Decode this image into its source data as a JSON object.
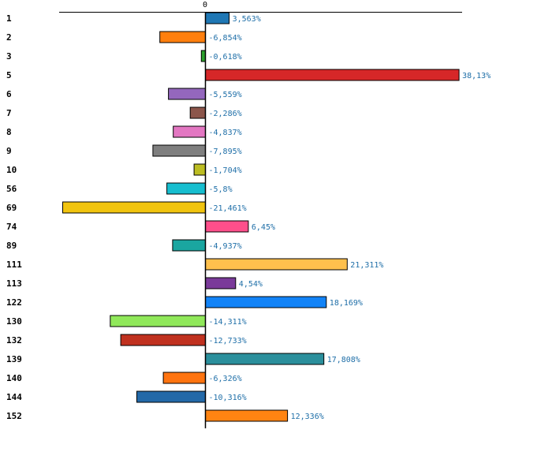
{
  "chart_data": {
    "type": "bar",
    "orientation": "horizontal",
    "title": "",
    "xlabel": "",
    "ylabel": "",
    "zero_tick_label": "0",
    "xlim": [
      -22.6,
      40.2
    ],
    "grid": false,
    "legend": "none",
    "bars": [
      {
        "category": "1",
        "value": 3.563,
        "label": "3,563%",
        "color": "#1f77b4"
      },
      {
        "category": "2",
        "value": -6.854,
        "label": "-6,854%",
        "color": "#ff7f0e"
      },
      {
        "category": "3",
        "value": -0.618,
        "label": "-0,618%",
        "color": "#2ca02c"
      },
      {
        "category": "5",
        "value": 38.13,
        "label": "38,13%",
        "color": "#d62728"
      },
      {
        "category": "6",
        "value": -5.559,
        "label": "-5,559%",
        "color": "#9467bd"
      },
      {
        "category": "7",
        "value": -2.286,
        "label": "-2,286%",
        "color": "#8c564b"
      },
      {
        "category": "8",
        "value": -4.837,
        "label": "-4,837%",
        "color": "#e377c2"
      },
      {
        "category": "9",
        "value": -7.895,
        "label": "-7,895%",
        "color": "#7f7f7f"
      },
      {
        "category": "10",
        "value": -1.704,
        "label": "-1,704%",
        "color": "#bcbd22"
      },
      {
        "category": "56",
        "value": -5.8,
        "label": "-5,8%",
        "color": "#17becf"
      },
      {
        "category": "69",
        "value": -21.461,
        "label": "-21,461%",
        "color": "#f1c40f"
      },
      {
        "category": "74",
        "value": 6.45,
        "label": "6,45%",
        "color": "#ff4f8b"
      },
      {
        "category": "89",
        "value": -4.937,
        "label": "-4,937%",
        "color": "#1aa6a0"
      },
      {
        "category": "111",
        "value": 21.311,
        "label": "21,311%",
        "color": "#ffc04d"
      },
      {
        "category": "113",
        "value": 4.54,
        "label": "4,54%",
        "color": "#7a3a9a"
      },
      {
        "category": "122",
        "value": 18.169,
        "label": "18,169%",
        "color": "#1283f7"
      },
      {
        "category": "130",
        "value": -14.311,
        "label": "-14,311%",
        "color": "#90e85a"
      },
      {
        "category": "132",
        "value": -12.733,
        "label": "-12,733%",
        "color": "#c0311f"
      },
      {
        "category": "139",
        "value": 17.808,
        "label": "17,808%",
        "color": "#2b8f9c"
      },
      {
        "category": "140",
        "value": -6.326,
        "label": "-6,326%",
        "color": "#ff7410"
      },
      {
        "category": "144",
        "value": -10.316,
        "label": "-10,316%",
        "color": "#2369a8"
      },
      {
        "category": "152",
        "value": 12.336,
        "label": "12,336%",
        "color": "#ff8412"
      }
    ]
  }
}
